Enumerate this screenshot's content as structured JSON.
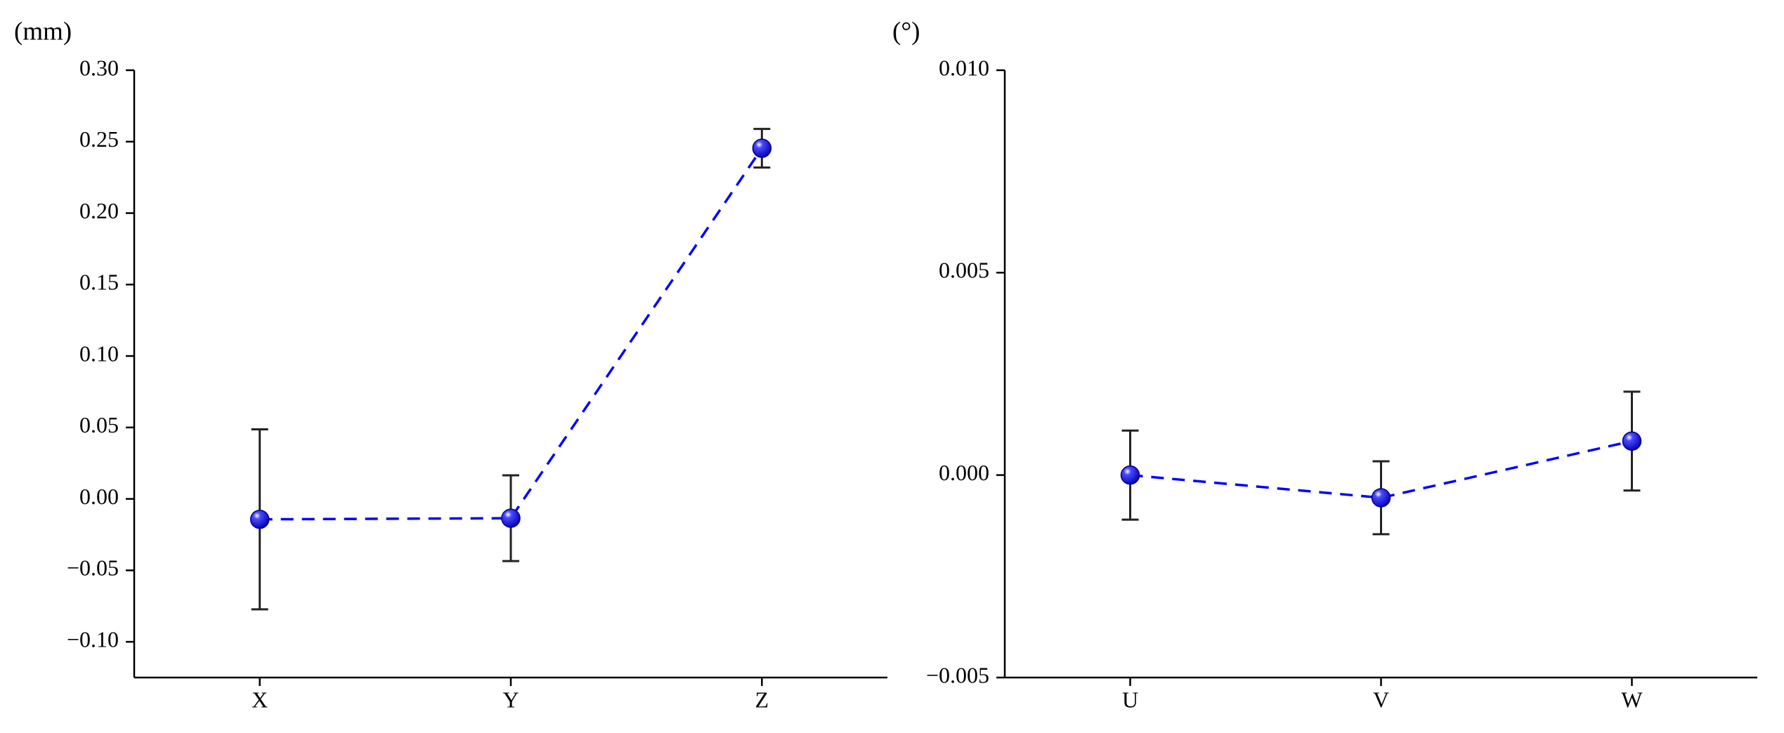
{
  "chart_data": [
    {
      "type": "line",
      "y_label": "(mm)",
      "categories": [
        "X",
        "Y",
        "Z"
      ],
      "values": [
        -0.0143,
        -0.0135,
        0.2454
      ],
      "errors": [
        0.063,
        0.03,
        0.0135
      ],
      "color": "#0000ff",
      "ylim": [
        -0.125,
        0.3
      ],
      "yticks": [
        {
          "value": -0.1,
          "label": "−0.10"
        },
        {
          "value": -0.05,
          "label": "−0.05"
        },
        {
          "value": 0,
          "label": "0.00"
        },
        {
          "value": 0.05,
          "label": "0.05"
        },
        {
          "value": 0.1,
          "label": "0.10"
        },
        {
          "value": 0.15,
          "label": "0.15"
        },
        {
          "value": 0.2,
          "label": "0.20"
        },
        {
          "value": 0.25,
          "label": "0.25"
        },
        {
          "value": 0.3,
          "label": "0.30"
        }
      ]
    },
    {
      "type": "line",
      "y_label": "(°)",
      "categories": [
        "U",
        "V",
        "W"
      ],
      "values": [
        0,
        -0.00056,
        0.00084
      ],
      "errors": [
        0.0011,
        0.0009,
        0.00122
      ],
      "color": "#0000ff",
      "ylim": [
        -0.005,
        0.01
      ],
      "yticks": [
        {
          "value": -0.005,
          "label": "−0.005"
        },
        {
          "value": 0,
          "label": "0.000"
        },
        {
          "value": 0.005,
          "label": "0.005"
        },
        {
          "value": 0.01,
          "label": "0.010"
        }
      ]
    }
  ]
}
